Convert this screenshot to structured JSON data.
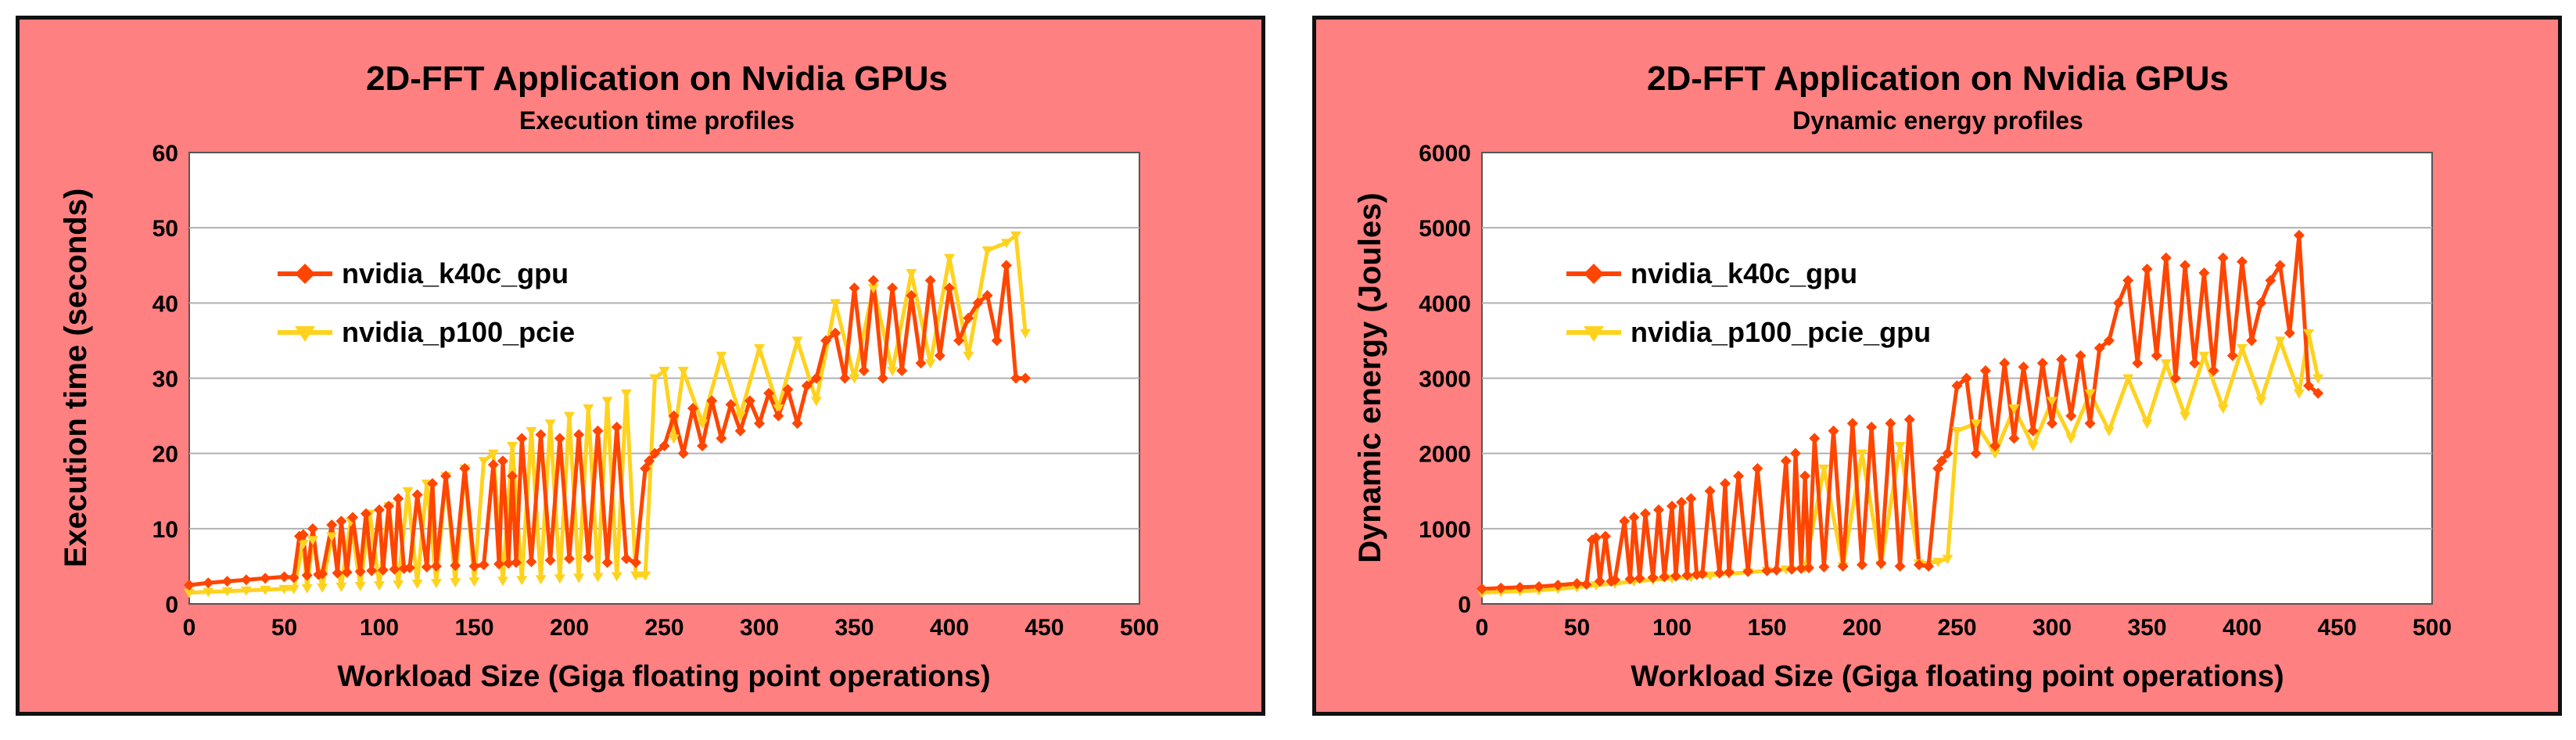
{
  "colors": {
    "background": "#ff8080",
    "k40c": "#ff4500",
    "p100": "#ffd21e",
    "plot_bg": "#ffffff",
    "grid": "#b0b0b0"
  },
  "chart_data": [
    {
      "type": "line",
      "title": "2D-FFT Application on Nvidia GPUs",
      "subtitle": "Execution time profiles",
      "xlabel": "Workload Size (Giga floating point operations)",
      "ylabel": "Execution time (seconds)",
      "xlim": [
        0,
        500
      ],
      "ylim": [
        0,
        60
      ],
      "xticks": [
        "0",
        "50",
        "100",
        "150",
        "200",
        "250",
        "300",
        "350",
        "400",
        "450",
        "500"
      ],
      "yticks": [
        "0",
        "10",
        "20",
        "30",
        "40",
        "50",
        "60"
      ],
      "xtick_values": [
        0,
        50,
        100,
        150,
        200,
        250,
        300,
        350,
        400,
        450,
        500
      ],
      "ytick_values": [
        0,
        10,
        20,
        30,
        40,
        50,
        60
      ],
      "grid": true,
      "legend_position": "upper-left",
      "series": [
        {
          "name": "nvidia_k40c_gpu",
          "marker": "diamond",
          "color": "#ff4500",
          "x": [
            0,
            10,
            20,
            30,
            40,
            50,
            55,
            58,
            60,
            62,
            65,
            68,
            70,
            75,
            78,
            80,
            83,
            86,
            90,
            93,
            96,
            100,
            102,
            105,
            108,
            110,
            113,
            116,
            120,
            125,
            128,
            130,
            135,
            140,
            145,
            150,
            155,
            160,
            163,
            165,
            168,
            170,
            172,
            175,
            180,
            185,
            190,
            195,
            200,
            205,
            210,
            215,
            220,
            225,
            230,
            235,
            240,
            242,
            245,
            250,
            255,
            260,
            265,
            270,
            275,
            280,
            285,
            290,
            295,
            300,
            305,
            310,
            315,
            320,
            325,
            330,
            335,
            340,
            345,
            350,
            355,
            360,
            365,
            370,
            375,
            380,
            385,
            390,
            395,
            400,
            405,
            410,
            415,
            420,
            425,
            430,
            435,
            440
          ],
          "y": [
            2.5,
            2.8,
            3.0,
            3.2,
            3.4,
            3.6,
            3.5,
            9,
            9.2,
            3.8,
            10,
            3.9,
            4.0,
            10.5,
            4.1,
            11,
            4.2,
            11.5,
            4.3,
            12,
            4.4,
            12.5,
            4.5,
            13,
            4.6,
            14,
            4.7,
            4.8,
            14.5,
            4.9,
            16,
            5.0,
            17,
            5.1,
            18,
            5.0,
            5.2,
            18.5,
            5.3,
            19,
            5.4,
            17,
            5.5,
            22,
            5.6,
            22.5,
            5.8,
            22,
            6.0,
            22.5,
            6.2,
            23,
            5.5,
            23.5,
            6.0,
            5.5,
            18,
            19,
            20,
            21,
            25,
            20,
            26,
            21,
            27,
            22,
            26.5,
            23,
            27,
            24,
            28,
            25,
            28.5,
            24,
            29,
            30,
            35,
            36,
            30,
            42,
            31,
            43,
            30,
            42,
            31,
            41,
            32,
            43,
            33,
            42,
            35,
            38,
            40,
            41,
            35,
            45,
            30,
            30
          ],
          "note": "approximate trace of the plotted series"
        },
        {
          "name": "nvidia_p100_pcie",
          "marker": "triangle-down",
          "color": "#ffd21e",
          "x": [
            0,
            10,
            20,
            30,
            40,
            50,
            55,
            60,
            62,
            65,
            70,
            75,
            80,
            85,
            90,
            95,
            100,
            105,
            110,
            115,
            120,
            125,
            130,
            135,
            140,
            145,
            150,
            155,
            160,
            165,
            170,
            175,
            180,
            185,
            190,
            195,
            200,
            205,
            210,
            215,
            220,
            225,
            230,
            235,
            240,
            245,
            250,
            255,
            260,
            270,
            280,
            290,
            300,
            310,
            320,
            330,
            340,
            350,
            360,
            370,
            380,
            390,
            400,
            410,
            420,
            430,
            435,
            440
          ],
          "y": [
            1.5,
            1.6,
            1.7,
            1.8,
            1.9,
            2.0,
            2.0,
            8,
            2.1,
            8.5,
            2.2,
            9,
            2.3,
            11,
            2.4,
            12,
            2.5,
            13,
            2.6,
            15,
            2.7,
            16,
            2.8,
            17,
            2.9,
            18,
            3.0,
            19,
            20,
            3.1,
            21,
            3.2,
            23,
            3.3,
            24,
            3.4,
            25,
            3.5,
            26,
            3.6,
            27,
            3.7,
            28,
            3.8,
            3.8,
            30,
            31,
            22,
            31,
            24,
            33,
            25,
            34,
            26,
            35,
            27,
            40,
            30,
            42,
            31,
            44,
            32,
            46,
            33,
            47,
            48,
            49,
            36
          ],
          "note": "approximate trace of the plotted series"
        }
      ]
    },
    {
      "type": "line",
      "title": "2D-FFT Application on Nvidia GPUs",
      "subtitle": "Dynamic energy profiles",
      "xlabel": "Workload Size (Giga floating point operations)",
      "ylabel": "Dynamic energy (Joules)",
      "xlim": [
        0,
        500
      ],
      "ylim": [
        0,
        6000
      ],
      "xticks": [
        "0",
        "50",
        "100",
        "150",
        "200",
        "250",
        "300",
        "350",
        "400",
        "450",
        "500"
      ],
      "yticks": [
        "0",
        "1000",
        "2000",
        "3000",
        "4000",
        "5000",
        "6000"
      ],
      "xtick_values": [
        0,
        50,
        100,
        150,
        200,
        250,
        300,
        350,
        400,
        450,
        500
      ],
      "ytick_values": [
        0,
        1000,
        2000,
        3000,
        4000,
        5000,
        6000
      ],
      "grid": true,
      "legend_position": "upper-left",
      "series": [
        {
          "name": "nvidia_k40c_gpu",
          "marker": "diamond",
          "color": "#ff4500",
          "x": [
            0,
            10,
            20,
            30,
            40,
            50,
            55,
            58,
            60,
            62,
            65,
            68,
            70,
            75,
            78,
            80,
            83,
            86,
            90,
            93,
            96,
            100,
            102,
            105,
            108,
            110,
            113,
            116,
            120,
            125,
            128,
            130,
            135,
            140,
            145,
            150,
            155,
            160,
            163,
            165,
            168,
            170,
            172,
            175,
            180,
            185,
            190,
            195,
            200,
            205,
            210,
            215,
            220,
            225,
            230,
            235,
            240,
            242,
            245,
            250,
            255,
            260,
            265,
            270,
            275,
            280,
            285,
            290,
            295,
            300,
            305,
            310,
            315,
            320,
            325,
            330,
            335,
            340,
            345,
            350,
            355,
            360,
            365,
            370,
            375,
            380,
            385,
            390,
            395,
            400,
            405,
            410,
            415,
            420,
            425,
            430,
            435,
            440
          ],
          "y": [
            200,
            210,
            220,
            230,
            250,
            270,
            260,
            850,
            880,
            300,
            900,
            300,
            320,
            1100,
            330,
            1150,
            340,
            1200,
            350,
            1250,
            360,
            1300,
            370,
            1350,
            380,
            1400,
            390,
            400,
            1500,
            410,
            1600,
            420,
            1700,
            430,
            1800,
            440,
            450,
            1900,
            460,
            2000,
            470,
            1700,
            480,
            2200,
            490,
            2300,
            500,
            2400,
            520,
            2350,
            540,
            2400,
            500,
            2450,
            520,
            500,
            1800,
            1900,
            2000,
            2900,
            3000,
            2000,
            3100,
            2100,
            3200,
            2200,
            3150,
            2300,
            3200,
            2400,
            3250,
            2500,
            3300,
            2400,
            3400,
            3500,
            4000,
            4300,
            3200,
            4450,
            3300,
            4600,
            3000,
            4500,
            3200,
            4400,
            3100,
            4600,
            3300,
            4550,
            3500,
            4000,
            4300,
            4500,
            3600,
            4900,
            2900,
            2800
          ],
          "note": "approximate trace of the plotted series"
        },
        {
          "name": "nvidia_p100_pcie_gpu",
          "marker": "triangle-down",
          "color": "#ffd21e",
          "x": [
            0,
            10,
            20,
            30,
            40,
            50,
            60,
            70,
            80,
            90,
            100,
            110,
            120,
            130,
            140,
            150,
            160,
            170,
            180,
            190,
            200,
            210,
            220,
            230,
            240,
            245,
            250,
            260,
            270,
            280,
            290,
            300,
            310,
            320,
            330,
            340,
            350,
            360,
            370,
            380,
            390,
            400,
            410,
            420,
            430,
            435,
            440
          ],
          "y": [
            150,
            160,
            170,
            180,
            200,
            220,
            250,
            270,
            300,
            320,
            340,
            360,
            380,
            400,
            420,
            440,
            460,
            480,
            1800,
            500,
            2000,
            520,
            2100,
            540,
            560,
            600,
            2300,
            2400,
            2000,
            2600,
            2100,
            2700,
            2200,
            2800,
            2300,
            3000,
            2400,
            3200,
            2500,
            3300,
            2600,
            3400,
            2700,
            3500,
            2800,
            3600,
            3000
          ],
          "note": "approximate trace of the plotted series"
        }
      ]
    }
  ]
}
